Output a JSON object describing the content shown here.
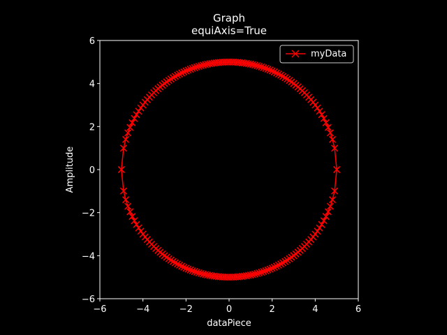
{
  "colors": {
    "background": "#000000",
    "foreground": "#ffffff",
    "series": "#ff0000"
  },
  "chart_data": {
    "type": "line",
    "title": "Graph",
    "subtitle": "equiAxis=True",
    "xlabel": "dataPiece",
    "ylabel": "Amplitude",
    "xlim": [
      -6,
      6
    ],
    "ylim": [
      -6,
      6
    ],
    "xticks": [
      "−6",
      "−4",
      "−2",
      "0",
      "2",
      "4",
      "6"
    ],
    "yticks": [
      "−6",
      "−4",
      "−2",
      "0",
      "2",
      "4",
      "6"
    ],
    "xtick_values": [
      -6,
      -4,
      -2,
      0,
      2,
      4,
      6
    ],
    "ytick_values": [
      -6,
      -4,
      -2,
      0,
      2,
      4,
      6
    ],
    "grid": false,
    "legend": "top-right",
    "equal_aspect": true,
    "series": [
      {
        "name": "myData",
        "color": "#ff0000",
        "marker": "x",
        "description": "circle of radius 5: x from -5 to 5 in steps of 0.1, y = ±sqrt(25 - x²)",
        "radius": 5,
        "x_start": -5,
        "x_end": 5,
        "x_step": 0.1
      }
    ]
  }
}
